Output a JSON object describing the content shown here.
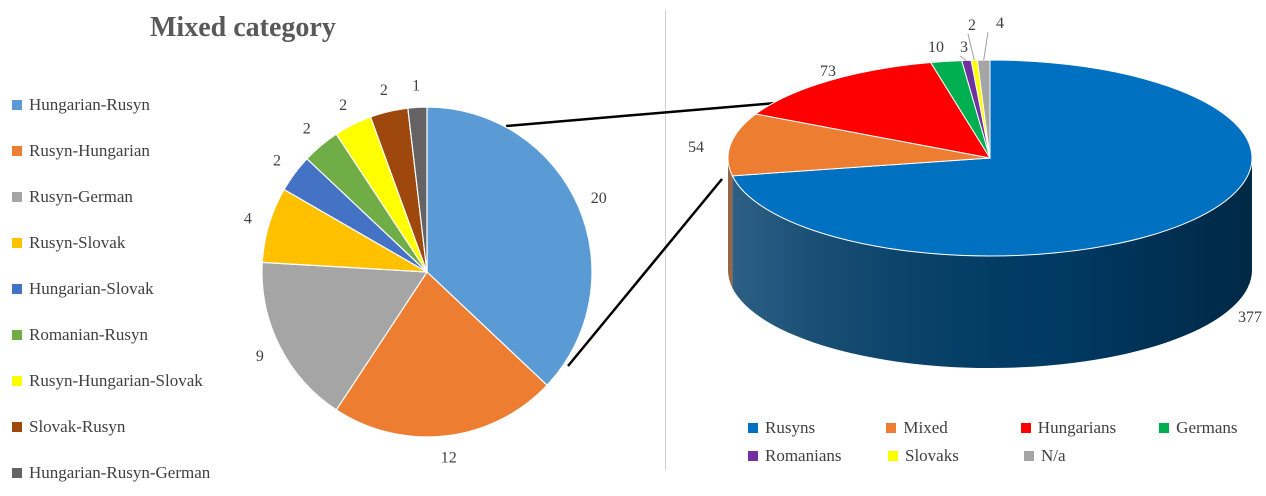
{
  "chart_data": [
    {
      "type": "pie",
      "title": "Mixed category",
      "legend_position": "left",
      "slices": [
        {
          "label": "Hungarian-Rusyn",
          "value": 20,
          "color": "#5B9BD5"
        },
        {
          "label": "Rusyn-Hungarian",
          "value": 12,
          "color": "#ED7D31"
        },
        {
          "label": "Rusyn-German",
          "value": 9,
          "color": "#A5A5A5"
        },
        {
          "label": "Rusyn-Slovak",
          "value": 4,
          "color": "#FFC000"
        },
        {
          "label": "Hungarian-Slovak",
          "value": 2,
          "color": "#4472C4"
        },
        {
          "label": "Romanian-Rusyn",
          "value": 2,
          "color": "#70AD47"
        },
        {
          "label": "Rusyn-Hungarian-Slovak",
          "value": 2,
          "color": "#FFFF00"
        },
        {
          "label": "Slovak-Rusyn",
          "value": 2,
          "color": "#9E480E"
        },
        {
          "label": "Hungarian-Rusyn-German",
          "value": 1,
          "color": "#636363"
        }
      ]
    },
    {
      "type": "pie",
      "title": "",
      "style": "3d",
      "legend_position": "bottom",
      "slices": [
        {
          "label": "Rusyns",
          "value": 377,
          "color": "#0070C0"
        },
        {
          "label": "Mixed",
          "value": 54,
          "color": "#ED7D31"
        },
        {
          "label": "Hungarians",
          "value": 73,
          "color": "#FF0000"
        },
        {
          "label": "Germans",
          "value": 10,
          "color": "#00B050"
        },
        {
          "label": "Romanians",
          "value": 3,
          "color": "#7030A0"
        },
        {
          "label": "Slovaks",
          "value": 2,
          "color": "#FFFF00"
        },
        {
          "label": "N/a",
          "value": 4,
          "color": "#A5A5A5"
        }
      ]
    }
  ]
}
